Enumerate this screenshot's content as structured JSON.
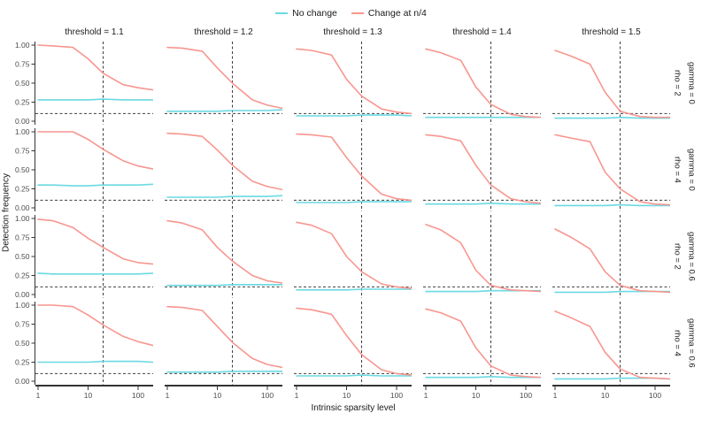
{
  "chart_data": {
    "type": "line",
    "xlabel": "Intrinsic sparsity level",
    "ylabel": "Detection frequency",
    "x_scale": "log10",
    "xlim": [
      1,
      200
    ],
    "ylim": [
      0,
      1
    ],
    "x_ticks": [
      1,
      10,
      100
    ],
    "y_ticks": [
      0.0,
      0.25,
      0.5,
      0.75,
      1.0
    ],
    "grid": "off",
    "legend_position": "top",
    "legend": [
      {
        "label": "No change",
        "color": "#6BD9E2"
      },
      {
        "label": "Change at n/4",
        "color": "#F8968F"
      }
    ],
    "reference_lines": {
      "hline_y": 0.1,
      "vline_x": 20,
      "style": "dashed",
      "color": "#3C3C3C"
    },
    "col_facets": [
      "threshold = 1.1",
      "threshold = 1.2",
      "threshold = 1.3",
      "threshold = 1.4",
      "threshold = 1.5"
    ],
    "row_facets": [
      {
        "rho": "rho = 2",
        "gamma": "gamma = 0"
      },
      {
        "rho": "rho = 4",
        "gamma": "gamma = 0"
      },
      {
        "rho": "rho = 2",
        "gamma": "gamma = 0.6"
      },
      {
        "rho": "rho = 4",
        "gamma": "gamma = 0.6"
      }
    ],
    "x": [
      1,
      2,
      5,
      10,
      20,
      50,
      100,
      200
    ],
    "panels": [
      {
        "row": 0,
        "col": 0,
        "no_change": [
          0.28,
          0.28,
          0.28,
          0.28,
          0.29,
          0.28,
          0.28,
          0.28
        ],
        "change_at_n4": [
          1.0,
          0.99,
          0.97,
          0.82,
          0.63,
          0.48,
          0.44,
          0.41
        ]
      },
      {
        "row": 0,
        "col": 1,
        "no_change": [
          0.13,
          0.13,
          0.13,
          0.13,
          0.14,
          0.14,
          0.14,
          0.15
        ],
        "change_at_n4": [
          0.97,
          0.96,
          0.92,
          0.7,
          0.5,
          0.28,
          0.21,
          0.17
        ]
      },
      {
        "row": 0,
        "col": 2,
        "no_change": [
          0.07,
          0.07,
          0.07,
          0.07,
          0.08,
          0.08,
          0.08,
          0.07
        ],
        "change_at_n4": [
          0.95,
          0.93,
          0.87,
          0.55,
          0.33,
          0.16,
          0.12,
          0.1
        ]
      },
      {
        "row": 0,
        "col": 3,
        "no_change": [
          0.05,
          0.05,
          0.05,
          0.05,
          0.05,
          0.05,
          0.05,
          0.05
        ],
        "change_at_n4": [
          0.95,
          0.9,
          0.8,
          0.45,
          0.22,
          0.09,
          0.06,
          0.05
        ]
      },
      {
        "row": 0,
        "col": 4,
        "no_change": [
          0.04,
          0.04,
          0.04,
          0.04,
          0.05,
          0.04,
          0.04,
          0.04
        ],
        "change_at_n4": [
          0.93,
          0.86,
          0.75,
          0.38,
          0.13,
          0.06,
          0.05,
          0.05
        ]
      },
      {
        "row": 1,
        "col": 0,
        "no_change": [
          0.3,
          0.3,
          0.29,
          0.29,
          0.3,
          0.3,
          0.3,
          0.31
        ],
        "change_at_n4": [
          1.0,
          1.0,
          1.0,
          0.9,
          0.77,
          0.62,
          0.55,
          0.51
        ]
      },
      {
        "row": 1,
        "col": 1,
        "no_change": [
          0.14,
          0.14,
          0.14,
          0.14,
          0.15,
          0.15,
          0.15,
          0.16
        ],
        "change_at_n4": [
          0.98,
          0.97,
          0.94,
          0.76,
          0.56,
          0.35,
          0.28,
          0.24
        ]
      },
      {
        "row": 1,
        "col": 2,
        "no_change": [
          0.07,
          0.07,
          0.07,
          0.07,
          0.08,
          0.08,
          0.08,
          0.08
        ],
        "change_at_n4": [
          0.97,
          0.96,
          0.93,
          0.66,
          0.42,
          0.18,
          0.12,
          0.1
        ]
      },
      {
        "row": 1,
        "col": 3,
        "no_change": [
          0.05,
          0.05,
          0.05,
          0.05,
          0.06,
          0.05,
          0.05,
          0.05
        ],
        "change_at_n4": [
          0.96,
          0.94,
          0.88,
          0.56,
          0.3,
          0.12,
          0.08,
          0.06
        ]
      },
      {
        "row": 1,
        "col": 4,
        "no_change": [
          0.03,
          0.03,
          0.03,
          0.03,
          0.04,
          0.03,
          0.03,
          0.03
        ],
        "change_at_n4": [
          0.96,
          0.92,
          0.87,
          0.47,
          0.25,
          0.08,
          0.05,
          0.04
        ]
      },
      {
        "row": 2,
        "col": 0,
        "no_change": [
          0.28,
          0.27,
          0.27,
          0.27,
          0.27,
          0.27,
          0.27,
          0.28
        ],
        "change_at_n4": [
          0.99,
          0.97,
          0.88,
          0.74,
          0.62,
          0.47,
          0.42,
          0.4
        ]
      },
      {
        "row": 2,
        "col": 1,
        "no_change": [
          0.12,
          0.12,
          0.12,
          0.12,
          0.13,
          0.13,
          0.13,
          0.13
        ],
        "change_at_n4": [
          0.97,
          0.94,
          0.85,
          0.62,
          0.44,
          0.25,
          0.18,
          0.15
        ]
      },
      {
        "row": 2,
        "col": 2,
        "no_change": [
          0.06,
          0.06,
          0.06,
          0.06,
          0.07,
          0.07,
          0.07,
          0.07
        ],
        "change_at_n4": [
          0.95,
          0.91,
          0.8,
          0.5,
          0.3,
          0.14,
          0.1,
          0.08
        ]
      },
      {
        "row": 2,
        "col": 3,
        "no_change": [
          0.04,
          0.04,
          0.04,
          0.04,
          0.05,
          0.05,
          0.05,
          0.05
        ],
        "change_at_n4": [
          0.92,
          0.85,
          0.68,
          0.32,
          0.12,
          0.06,
          0.05,
          0.04
        ]
      },
      {
        "row": 2,
        "col": 4,
        "no_change": [
          0.03,
          0.03,
          0.03,
          0.03,
          0.04,
          0.04,
          0.04,
          0.04
        ],
        "change_at_n4": [
          0.86,
          0.76,
          0.6,
          0.3,
          0.12,
          0.05,
          0.04,
          0.03
        ]
      },
      {
        "row": 3,
        "col": 0,
        "no_change": [
          0.25,
          0.25,
          0.25,
          0.25,
          0.26,
          0.26,
          0.26,
          0.25
        ],
        "change_at_n4": [
          1.0,
          1.0,
          0.98,
          0.87,
          0.74,
          0.59,
          0.52,
          0.47
        ]
      },
      {
        "row": 3,
        "col": 1,
        "no_change": [
          0.12,
          0.12,
          0.12,
          0.12,
          0.13,
          0.13,
          0.13,
          0.13
        ],
        "change_at_n4": [
          0.98,
          0.97,
          0.93,
          0.72,
          0.51,
          0.3,
          0.22,
          0.18
        ]
      },
      {
        "row": 3,
        "col": 2,
        "no_change": [
          0.07,
          0.07,
          0.07,
          0.07,
          0.08,
          0.07,
          0.07,
          0.07
        ],
        "change_at_n4": [
          0.96,
          0.94,
          0.88,
          0.6,
          0.35,
          0.15,
          0.1,
          0.08
        ]
      },
      {
        "row": 3,
        "col": 3,
        "no_change": [
          0.05,
          0.05,
          0.05,
          0.05,
          0.06,
          0.05,
          0.05,
          0.05
        ],
        "change_at_n4": [
          0.95,
          0.9,
          0.79,
          0.44,
          0.2,
          0.08,
          0.06,
          0.05
        ]
      },
      {
        "row": 3,
        "col": 4,
        "no_change": [
          0.03,
          0.03,
          0.03,
          0.03,
          0.04,
          0.04,
          0.04,
          0.03
        ],
        "change_at_n4": [
          0.92,
          0.84,
          0.72,
          0.38,
          0.16,
          0.05,
          0.04,
          0.03
        ]
      }
    ]
  }
}
